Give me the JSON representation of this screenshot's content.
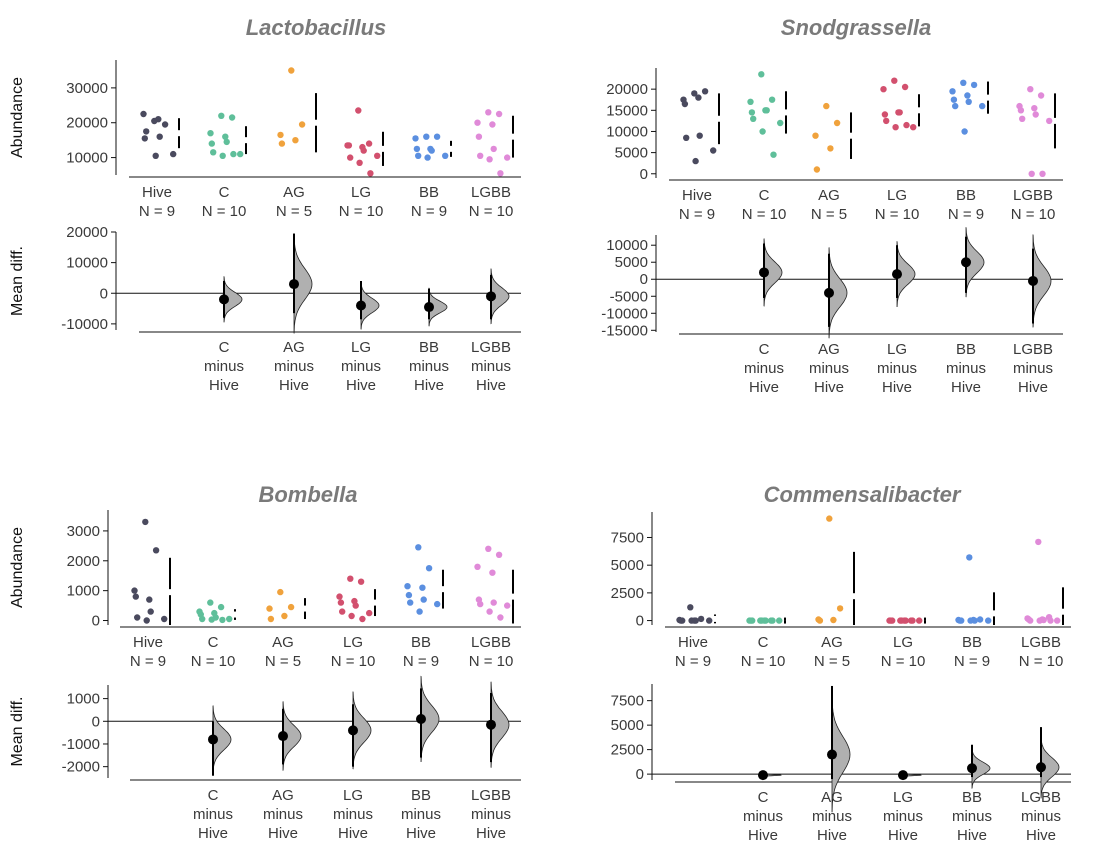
{
  "colors": {
    "Hive": "#4a4a5e",
    "C": "#5fbf9a",
    "AG": "#f0a23c",
    "LG": "#d2506e",
    "BB": "#5b8fe0",
    "LGBB": "#e08ad8",
    "axis": "#111111",
    "mean_dot": "#000000",
    "dist_fill": "#b0b0b0"
  },
  "chart_data": [
    {
      "type": "scatter",
      "title": "Lactobacillus",
      "ylabel": "Abundance",
      "group_labels": [
        "Hive\nN = 9",
        "C\nN = 10",
        "AG\nN = 5",
        "LG\nN = 10",
        "BB\nN = 9",
        "LGBB\nN = 10"
      ],
      "ylim": [
        5000,
        38000
      ],
      "yticks": [
        10000,
        20000,
        30000
      ],
      "groups": [
        {
          "name": "Hive",
          "values": [
            20500,
            19500,
            22500,
            21000,
            15500,
            16000,
            17500,
            11000,
            10500
          ],
          "mean": 17000,
          "sd": 4300
        },
        {
          "name": "C",
          "values": [
            22000,
            21500,
            17000,
            16000,
            14000,
            14500,
            11500,
            11000,
            10500,
            11000
          ],
          "mean": 15000,
          "sd": 4000
        },
        {
          "name": "AG",
          "values": [
            35000,
            19500,
            16500,
            15000,
            14000
          ],
          "mean": 20000,
          "sd": 8500
        },
        {
          "name": "LG",
          "values": [
            23500,
            14000,
            13500,
            13000,
            13500,
            12000,
            10000,
            10500,
            8500,
            5500
          ],
          "mean": 12500,
          "sd": 4900
        },
        {
          "name": "BB",
          "values": [
            16000,
            16000,
            15500,
            12500,
            12500,
            12000,
            10500,
            10500,
            10000
          ],
          "mean": 12500,
          "sd": 2300
        },
        {
          "name": "LGBB",
          "values": [
            23000,
            22500,
            20000,
            19500,
            16000,
            12500,
            10500,
            10000,
            9500,
            5500
          ],
          "mean": 16000,
          "sd": 6000
        }
      ],
      "diff": {
        "ylabel": "Mean diff.",
        "ylim": [
          -12000,
          20000
        ],
        "yticks": [
          -10000,
          0,
          10000,
          20000
        ],
        "labels": [
          "C\nminus\nHive",
          "AG\nminus\nHive",
          "LG\nminus\nHive",
          "BB\nminus\nHive",
          "LGBB\nminus\nHive"
        ],
        "values": [
          -2000,
          3000,
          -4000,
          -4500,
          -1000
        ],
        "ci": [
          [
            -8000,
            4000
          ],
          [
            -6500,
            19500
          ],
          [
            -8500,
            4000
          ],
          [
            -8500,
            1500
          ],
          [
            -8500,
            6000
          ]
        ]
      }
    },
    {
      "type": "scatter",
      "title": "Snodgrassella",
      "ylabel": "",
      "group_labels": [
        "Hive\nN = 9",
        "C\nN = 10",
        "AG\nN = 5",
        "LG\nN = 10",
        "BB\nN = 9",
        "LGBB\nN = 10"
      ],
      "ylim": [
        -1000,
        25000
      ],
      "yticks": [
        0,
        5000,
        10000,
        15000,
        20000
      ],
      "groups": [
        {
          "name": "Hive",
          "values": [
            19000,
            19500,
            17500,
            18000,
            16500,
            9000,
            8500,
            5500,
            3000
          ],
          "mean": 13000,
          "sd": 6000
        },
        {
          "name": "C",
          "values": [
            23500,
            17500,
            17000,
            15000,
            14500,
            15000,
            13000,
            12000,
            10000,
            4500
          ],
          "mean": 14500,
          "sd": 5000
        },
        {
          "name": "AG",
          "values": [
            16000,
            12000,
            9000,
            6000,
            1000
          ],
          "mean": 9000,
          "sd": 5500
        },
        {
          "name": "LG",
          "values": [
            22000,
            20500,
            20000,
            14500,
            14000,
            14500,
            12500,
            11000,
            11000,
            11500
          ],
          "mean": 15000,
          "sd": 3800
        },
        {
          "name": "BB",
          "values": [
            21500,
            21000,
            19500,
            18500,
            17500,
            17000,
            16000,
            16000,
            10000
          ],
          "mean": 18000,
          "sd": 3800
        },
        {
          "name": "LGBB",
          "values": [
            20000,
            18500,
            16000,
            15500,
            15000,
            14000,
            13000,
            12500,
            0,
            0
          ],
          "mean": 12500,
          "sd": 6500
        }
      ],
      "diff": {
        "ylabel": "",
        "ylim": [
          -15500,
          13000
        ],
        "yticks": [
          -15000,
          -10000,
          -5000,
          0,
          5000,
          10000
        ],
        "labels": [
          "C\nminus\nHive",
          "AG\nminus\nHive",
          "LG\nminus\nHive",
          "BB\nminus\nHive",
          "LGBB\nminus\nHive"
        ],
        "values": [
          2000,
          -4000,
          1500,
          5000,
          -500
        ],
        "ci": [
          [
            -5500,
            10500
          ],
          [
            -14000,
            7500
          ],
          [
            -5500,
            10000
          ],
          [
            -4000,
            12500
          ],
          [
            -13000,
            9000
          ]
        ]
      }
    },
    {
      "type": "scatter",
      "title": "Bombella",
      "ylabel": "Abundance",
      "group_labels": [
        "Hive\nN = 9",
        "C\nN = 10",
        "AG\nN = 5",
        "LG\nN = 10",
        "BB\nN = 9",
        "LGBB\nN = 10"
      ],
      "ylim": [
        -150,
        3700
      ],
      "yticks": [
        0,
        1000,
        2000,
        3000
      ],
      "groups": [
        {
          "name": "Hive",
          "values": [
            3300,
            2350,
            1000,
            700,
            800,
            300,
            100,
            50,
            0
          ],
          "mean": 950,
          "sd": 1150
        },
        {
          "name": "C",
          "values": [
            600,
            450,
            300,
            250,
            200,
            100,
            50,
            50,
            30,
            20
          ],
          "mean": 200,
          "sd": 180
        },
        {
          "name": "AG",
          "values": [
            950,
            450,
            400,
            150,
            50
          ],
          "mean": 400,
          "sd": 350
        },
        {
          "name": "LG",
          "values": [
            1400,
            1300,
            800,
            650,
            600,
            500,
            300,
            250,
            150,
            50
          ],
          "mean": 600,
          "sd": 450
        },
        {
          "name": "BB",
          "values": [
            2450,
            1750,
            1150,
            1100,
            850,
            700,
            600,
            550,
            300
          ],
          "mean": 1050,
          "sd": 650
        },
        {
          "name": "LGBB",
          "values": [
            2400,
            2200,
            1800,
            1600,
            700,
            600,
            550,
            500,
            300,
            100
          ],
          "mean": 800,
          "sd": 900
        }
      ],
      "diff": {
        "ylabel": "Mean diff.",
        "ylim": [
          -2500,
          1600
        ],
        "yticks": [
          -2000,
          -1000,
          0,
          1000
        ],
        "labels": [
          "C\nminus\nHive",
          "AG\nminus\nHive",
          "LG\nminus\nHive",
          "BB\nminus\nHive",
          "LGBB\nminus\nHive"
        ],
        "values": [
          -800,
          -650,
          -400,
          100,
          -150
        ],
        "ci": [
          [
            -2400,
            0
          ],
          [
            -1900,
            550
          ],
          [
            -2000,
            750
          ],
          [
            -1600,
            1450
          ],
          [
            -1800,
            1250
          ]
        ]
      }
    },
    {
      "type": "scatter",
      "title": "Commensalibacter",
      "ylabel": "",
      "group_labels": [
        "Hive\nN = 9",
        "C\nN = 10",
        "AG\nN = 5",
        "LG\nN = 10",
        "BB\nN = 9",
        "LGBB\nN = 10"
      ],
      "ylim": [
        -400,
        9800
      ],
      "yticks": [
        0,
        2500,
        5000,
        7500
      ],
      "groups": [
        {
          "name": "Hive",
          "values": [
            1200,
            150,
            50,
            0,
            0,
            0,
            0,
            0,
            0
          ],
          "mean": 150,
          "sd": 400
        },
        {
          "name": "C",
          "values": [
            0,
            0,
            0,
            0,
            0,
            0,
            0,
            0,
            0,
            0
          ],
          "mean": 0,
          "sd": 0
        },
        {
          "name": "AG",
          "values": [
            9200,
            1100,
            100,
            50,
            0
          ],
          "mean": 2200,
          "sd": 4000
        },
        {
          "name": "LG",
          "values": [
            0,
            0,
            0,
            0,
            0,
            0,
            0,
            0,
            0,
            0
          ],
          "mean": 0,
          "sd": 0
        },
        {
          "name": "BB",
          "values": [
            5700,
            100,
            50,
            50,
            0,
            0,
            0,
            0,
            0
          ],
          "mean": 650,
          "sd": 1900
        },
        {
          "name": "LGBB",
          "values": [
            7100,
            300,
            200,
            100,
            100,
            50,
            0,
            0,
            0,
            0
          ],
          "mean": 800,
          "sd": 2200
        }
      ],
      "diff": {
        "ylabel": "",
        "ylim": [
          -600,
          9200
        ],
        "yticks": [
          0,
          2500,
          5000,
          7500
        ],
        "labels": [
          "C\nminus\nHive",
          "AG\nminus\nHive",
          "LG\nminus\nHive",
          "BB\nminus\nHive",
          "LGBB\nminus\nHive"
        ],
        "values": [
          -100,
          2000,
          -100,
          600,
          700
        ],
        "ci": [
          [
            -300,
            0
          ],
          [
            -500,
            9000
          ],
          [
            -300,
            0
          ],
          [
            -300,
            3000
          ],
          [
            -300,
            4800
          ]
        ]
      }
    }
  ]
}
